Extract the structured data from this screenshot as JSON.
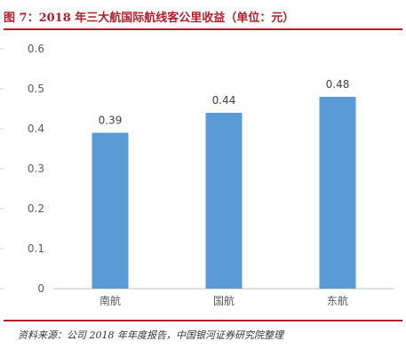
{
  "title": "图 7：2018 年三大航国际航线客公里收益（单位：元）",
  "source": "资料来源：公司 2018 年年度报告，中国银河证券研究院整理",
  "colors": {
    "accent": "#b11f2a",
    "bar": "#5b9bd5",
    "axis": "#bfbfbf",
    "tick_text": "#595959",
    "label_text": "#404040"
  },
  "chart_data": {
    "type": "bar",
    "categories": [
      "南航",
      "国航",
      "东航"
    ],
    "values": [
      0.39,
      0.44,
      0.48
    ],
    "value_labels": [
      "0.39",
      "0.44",
      "0.48"
    ],
    "yticks": [
      "0",
      "0.1",
      "0.2",
      "0.3",
      "0.4",
      "0.5",
      "0.6"
    ],
    "ylim": [
      0,
      0.6
    ],
    "grid": false
  }
}
